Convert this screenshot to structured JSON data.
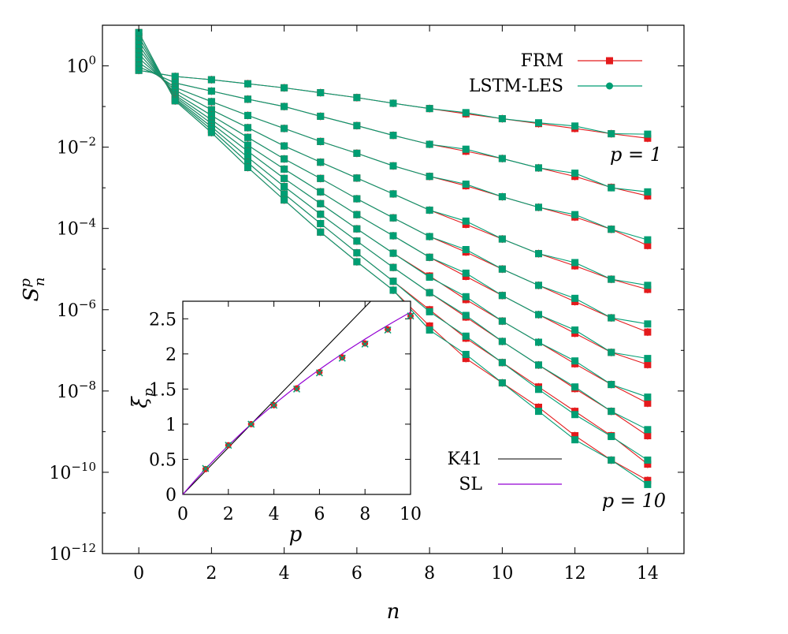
{
  "chart_data": [
    {
      "id": "main",
      "type": "line",
      "xlabel": "n",
      "ylabel": "S",
      "ylabel_sup": "p",
      "ylabel_sub": "n",
      "xlim": [
        -1,
        15
      ],
      "ylim_log10": [
        -12,
        1
      ],
      "yscale": "log",
      "x_ticks": [
        0,
        2,
        4,
        6,
        8,
        10,
        12,
        14
      ],
      "y_ticks": [
        {
          "base": "10",
          "exp": "0",
          "log": 0
        },
        {
          "base": "10",
          "exp": "−2",
          "log": -2
        },
        {
          "base": "10",
          "exp": "−4",
          "log": -4
        },
        {
          "base": "10",
          "exp": "−6",
          "log": -6
        },
        {
          "base": "10",
          "exp": "−8",
          "log": -8
        },
        {
          "base": "10",
          "exp": "−10",
          "log": -10
        },
        {
          "base": "10",
          "exp": "−12",
          "log": -12
        }
      ],
      "legend_position": "top-right",
      "series": [
        {
          "name": "FRM",
          "color": "#e41a1c",
          "marker": "square"
        },
        {
          "name": "LSTM-LES",
          "color": "#009e73",
          "marker": "circle"
        }
      ],
      "x": [
        0,
        1,
        2,
        3,
        4,
        5,
        6,
        7,
        8,
        9,
        10,
        11,
        12,
        13,
        14
      ],
      "curves_log10": [
        {
          "p": 1,
          "FRM": [
            -0.11,
            -0.26,
            -0.34,
            -0.44,
            -0.54,
            -0.66,
            -0.78,
            -0.92,
            -1.05,
            -1.18,
            -1.3,
            -1.42,
            -1.54,
            -1.67,
            -1.78
          ],
          "LSTM-LES": [
            -0.11,
            -0.26,
            -0.34,
            -0.44,
            -0.54,
            -0.66,
            -0.78,
            -0.92,
            -1.05,
            -1.15,
            -1.3,
            -1.4,
            -1.48,
            -1.67,
            -1.68
          ]
        },
        {
          "p": 2,
          "FRM": [
            -0.02,
            -0.42,
            -0.62,
            -0.82,
            -1.0,
            -1.24,
            -1.47,
            -1.71,
            -1.93,
            -2.1,
            -2.28,
            -2.51,
            -2.72,
            -2.99,
            -3.2
          ],
          "LSTM-LES": [
            -0.02,
            -0.42,
            -0.62,
            -0.82,
            -1.0,
            -1.24,
            -1.47,
            -1.71,
            -1.93,
            -2.05,
            -2.28,
            -2.51,
            -2.64,
            -3.0,
            -3.1
          ]
        },
        {
          "p": 3,
          "FRM": [
            0.08,
            -0.53,
            -0.88,
            -1.22,
            -1.54,
            -1.86,
            -2.15,
            -2.46,
            -2.72,
            -2.95,
            -3.22,
            -3.48,
            -3.72,
            -4.02,
            -4.42
          ],
          "LSTM-LES": [
            0.08,
            -0.53,
            -0.88,
            -1.22,
            -1.54,
            -1.86,
            -2.15,
            -2.46,
            -2.72,
            -2.91,
            -3.22,
            -3.48,
            -3.66,
            -4.02,
            -4.28
          ]
        },
        {
          "p": 4,
          "FRM": [
            0.19,
            -0.6,
            -1.08,
            -1.52,
            -1.97,
            -2.37,
            -2.76,
            -3.15,
            -3.55,
            -3.9,
            -4.26,
            -4.62,
            -4.92,
            -5.25,
            -5.5
          ],
          "LSTM-LES": [
            0.19,
            -0.6,
            -1.08,
            -1.52,
            -1.97,
            -2.37,
            -2.76,
            -3.15,
            -3.55,
            -3.82,
            -4.26,
            -4.62,
            -4.84,
            -5.25,
            -5.4
          ]
        },
        {
          "p": 5,
          "FRM": [
            0.3,
            -0.67,
            -1.22,
            -1.76,
            -2.29,
            -2.77,
            -3.27,
            -3.74,
            -4.2,
            -4.58,
            -5.0,
            -5.4,
            -5.8,
            -6.2,
            -6.55
          ],
          "LSTM-LES": [
            0.3,
            -0.67,
            -1.22,
            -1.76,
            -2.29,
            -2.77,
            -3.27,
            -3.74,
            -4.2,
            -4.52,
            -5.0,
            -5.4,
            -5.72,
            -6.2,
            -6.35
          ]
        },
        {
          "p": 6,
          "FRM": [
            0.41,
            -0.72,
            -1.33,
            -1.95,
            -2.54,
            -3.1,
            -3.66,
            -4.18,
            -4.71,
            -5.18,
            -5.65,
            -6.12,
            -6.58,
            -7.05,
            -7.35
          ],
          "LSTM-LES": [
            0.41,
            -0.72,
            -1.33,
            -1.95,
            -2.54,
            -3.1,
            -3.66,
            -4.18,
            -4.71,
            -5.1,
            -5.65,
            -6.12,
            -6.5,
            -7.05,
            -7.2
          ]
        },
        {
          "p": 7,
          "FRM": [
            0.51,
            -0.76,
            -1.42,
            -2.1,
            -2.77,
            -3.39,
            -4.01,
            -4.61,
            -5.17,
            -5.75,
            -6.28,
            -6.8,
            -7.33,
            -7.84,
            -8.3
          ],
          "LSTM-LES": [
            0.51,
            -0.76,
            -1.42,
            -2.1,
            -2.77,
            -3.39,
            -4.01,
            -4.61,
            -5.2,
            -5.68,
            -6.28,
            -6.8,
            -7.26,
            -7.84,
            -8.15
          ]
        },
        {
          "p": 8,
          "FRM": [
            0.62,
            -0.8,
            -1.5,
            -2.25,
            -2.97,
            -3.65,
            -4.31,
            -4.96,
            -5.58,
            -6.18,
            -6.78,
            -7.36,
            -7.94,
            -8.5,
            -9.1
          ],
          "LSTM-LES": [
            0.62,
            -0.8,
            -1.5,
            -2.25,
            -2.97,
            -3.65,
            -4.31,
            -4.96,
            -5.58,
            -6.14,
            -6.78,
            -7.36,
            -7.9,
            -8.5,
            -8.95
          ]
        },
        {
          "p": 9,
          "FRM": [
            0.72,
            -0.83,
            -1.57,
            -2.38,
            -3.15,
            -3.88,
            -4.6,
            -5.3,
            -6.0,
            -6.7,
            -7.3,
            -7.9,
            -8.5,
            -9.1,
            -9.8
          ],
          "LSTM-LES": [
            0.72,
            -0.83,
            -1.57,
            -2.38,
            -3.15,
            -3.88,
            -4.6,
            -5.3,
            -6.05,
            -6.65,
            -7.3,
            -7.96,
            -8.58,
            -9.12,
            -9.7
          ]
        },
        {
          "p": 10,
          "FRM": [
            0.82,
            -0.86,
            -1.64,
            -2.5,
            -3.3,
            -4.09,
            -4.82,
            -5.52,
            -6.4,
            -7.2,
            -7.8,
            -8.4,
            -9.1,
            -9.7,
            -10.2
          ],
          "LSTM-LES": [
            0.82,
            -0.86,
            -1.64,
            -2.5,
            -3.3,
            -4.09,
            -4.82,
            -5.52,
            -6.5,
            -7.1,
            -7.8,
            -8.5,
            -9.2,
            -9.7,
            -10.3
          ]
        }
      ],
      "annotations": [
        {
          "text": "p = 1",
          "near": "p=1 curve, right end"
        },
        {
          "text": "p = 10",
          "near": "p=10 curve, right end"
        }
      ]
    },
    {
      "id": "inset",
      "type": "scatter",
      "xlabel": "p",
      "ylabel": "ξ",
      "ylabel_sub": "p",
      "xlim": [
        0,
        10
      ],
      "ylim": [
        0,
        2.75
      ],
      "x_ticks": [
        "0",
        "2",
        "4",
        "6",
        "8",
        "10"
      ],
      "y_ticks": [
        "0",
        "0.5",
        "1",
        "1.5",
        "2",
        "2.5"
      ],
      "legend_position": "bottom-right",
      "lines": [
        {
          "name": "K41",
          "color": "#000000",
          "type": "line",
          "slope": 0.3333
        },
        {
          "name": "SL",
          "color": "#9400d3",
          "type": "line",
          "formula": "p/9 + 2(1-(2/3)^(p/3))"
        }
      ],
      "points": {
        "p": [
          1,
          2,
          3,
          4,
          5,
          6,
          7,
          8,
          9,
          10
        ],
        "FRM": [
          0.36,
          0.7,
          1.0,
          1.27,
          1.51,
          1.74,
          1.95,
          2.15,
          2.35,
          2.54
        ],
        "LSTM-LES": [
          0.37,
          0.7,
          1.0,
          1.27,
          1.5,
          1.73,
          1.94,
          2.14,
          2.34,
          2.54
        ]
      }
    }
  ]
}
